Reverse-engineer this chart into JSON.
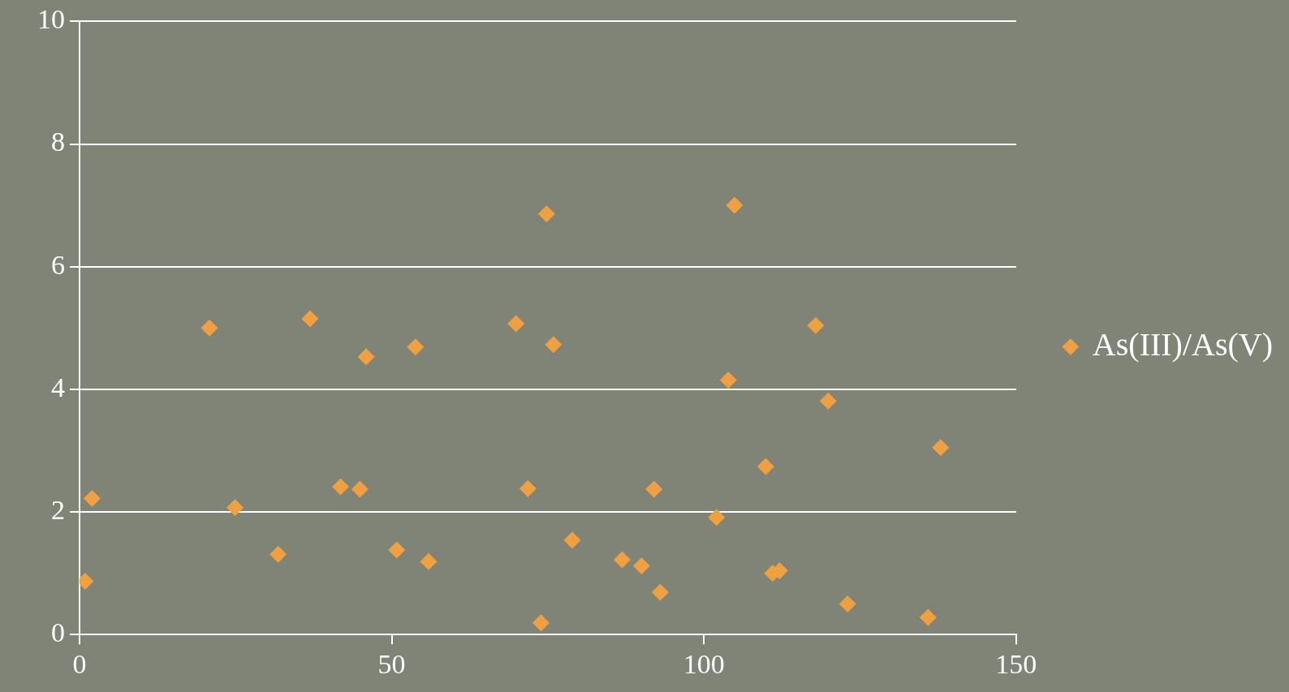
{
  "chart_data": {
    "type": "scatter",
    "xlim": [
      0,
      150
    ],
    "xticks": [
      0,
      50,
      100,
      150
    ],
    "ylim": [
      0,
      10
    ],
    "yticks": [
      0,
      2,
      4,
      6,
      8,
      10
    ],
    "grid": "y",
    "legend": "right",
    "marker": "diamond",
    "series": [
      {
        "name": "As(III)/As(V)",
        "color": "#f0a040",
        "x": [
          0.9,
          2,
          20.8,
          24.9,
          31.8,
          36.9,
          41.8,
          44.9,
          45.9,
          50.8,
          53.8,
          55.9,
          69.9,
          71.8,
          73.9,
          74.8,
          75.9,
          78.9,
          86.9,
          90,
          92,
          93,
          102,
          103.9,
          104.9,
          109.9,
          111,
          112.1,
          117.9,
          119.9,
          123,
          135.9,
          137.9
        ],
        "values": [
          0.87,
          2.22,
          5.0,
          2.07,
          1.31,
          5.15,
          2.41,
          2.37,
          4.53,
          1.38,
          4.69,
          1.19,
          5.07,
          2.38,
          0.19,
          6.86,
          4.73,
          1.54,
          1.22,
          1.12,
          2.37,
          0.69,
          1.91,
          4.15,
          7.0,
          2.74,
          1.0,
          1.04,
          5.04,
          3.81,
          0.5,
          0.28,
          3.05
        ]
      }
    ]
  }
}
